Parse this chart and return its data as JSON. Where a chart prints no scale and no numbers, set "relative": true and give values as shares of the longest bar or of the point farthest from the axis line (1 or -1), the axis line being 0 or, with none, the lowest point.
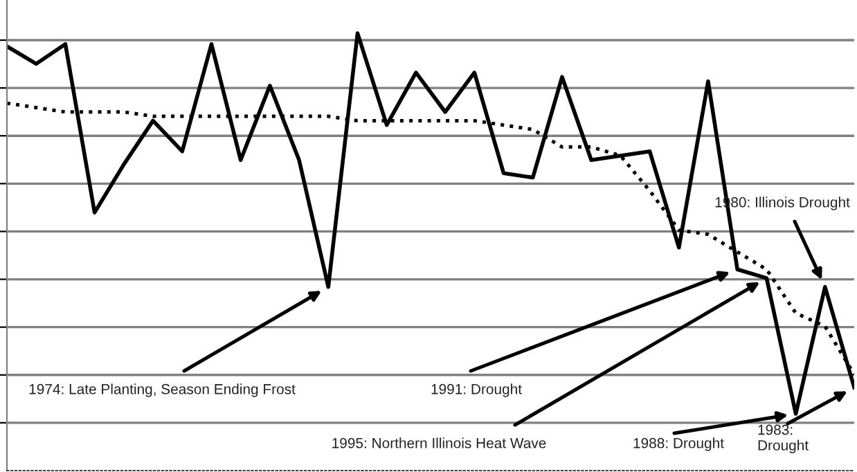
{
  "chart_data": {
    "type": "line",
    "relative": true,
    "grid": "y",
    "categories": [
      null,
      null,
      null,
      null,
      null,
      null,
      null,
      null,
      null,
      null,
      null,
      null,
      null,
      null,
      null,
      null,
      null,
      null,
      null,
      null,
      null,
      null,
      null,
      null,
      null,
      null,
      null,
      null,
      null,
      null
    ],
    "series": [
      {
        "color": "#000000",
        "line_style": "solid",
        "values": [
          0.97,
          0.93,
          0.975,
          0.59,
          0.7,
          0.8,
          0.73,
          0.975,
          0.71,
          0.88,
          0.71,
          0.42,
          1,
          0.79,
          0.91,
          0.82,
          0.91,
          0.68,
          0.67,
          0.9,
          0.71,
          0.72,
          0.73,
          0.51,
          0.89,
          0.46,
          0.44,
          0.13,
          0.42,
          0.19
        ]
      },
      {
        "color": "#000000",
        "line_style": "dotted",
        "values": [
          0.84,
          0.83,
          0.82,
          0.82,
          0.82,
          0.81,
          0.81,
          0.81,
          0.81,
          0.81,
          0.81,
          0.81,
          0.8,
          0.8,
          0.8,
          0.8,
          0.8,
          0.79,
          0.78,
          0.74,
          0.74,
          0.72,
          0.64,
          0.55,
          0.54,
          0.5,
          0.46,
          0.36,
          0.33,
          0.22
        ]
      }
    ],
    "annotations": [
      "1974: Late Planting, Season Ending Frost",
      "1991: Drought",
      "1995: Northern Illinois Heat Wave",
      "1988: Drought",
      "1980: Illinois Drought",
      "1983:\nDrought"
    ]
  }
}
